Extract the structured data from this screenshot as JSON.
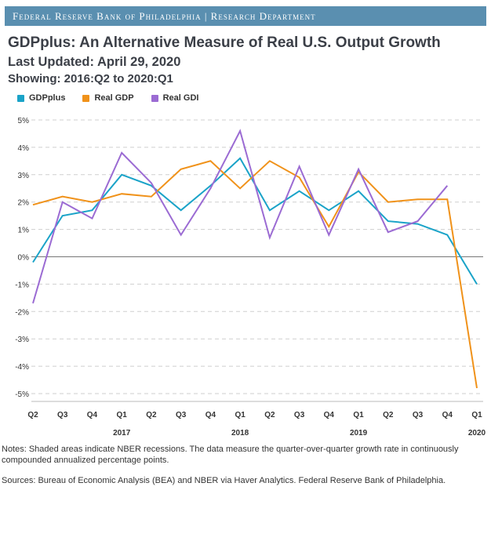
{
  "header": {
    "banner": "Federal Reserve Bank of Philadelphia | Research Department",
    "title": "GDPplus: An Alternative Measure of Real U.S. Output Growth",
    "updated": "Last Updated: April 29, 2020",
    "showing": "Showing: 2016:Q2 to 2020:Q1"
  },
  "footer": {
    "notes": "Notes: Shaded areas indicate NBER recessions. The data measure the quarter-over-quarter growth rate in continuously compounded annualized percentage points.",
    "sources": "Sources: Bureau of Economic Analysis (BEA) and NBER via Haver Analytics. Federal Reserve Bank of Philadelphia."
  },
  "chart_data": {
    "type": "line",
    "categories": [
      "Q2",
      "Q3",
      "Q4",
      "Q1",
      "Q2",
      "Q3",
      "Q4",
      "Q1",
      "Q2",
      "Q3",
      "Q4",
      "Q1",
      "Q2",
      "Q3",
      "Q4",
      "Q1"
    ],
    "year_labels": [
      {
        "label": "2017",
        "index": 3
      },
      {
        "label": "2018",
        "index": 7
      },
      {
        "label": "2019",
        "index": 11
      },
      {
        "label": "2020",
        "index": 15
      }
    ],
    "y_ticks": [
      5,
      4,
      3,
      2,
      1,
      0,
      -1,
      -2,
      -3,
      -4,
      -5
    ],
    "y_tick_suffix": "%",
    "ylim": [
      -5,
      5
    ],
    "grid": "horizontal dashed",
    "legend_position": "top-left",
    "series": [
      {
        "name": "GDPplus",
        "color": "#1aa3c8",
        "values": [
          -0.2,
          1.5,
          1.7,
          3.0,
          2.6,
          1.7,
          2.6,
          3.6,
          1.7,
          2.4,
          1.7,
          2.4,
          1.3,
          1.2,
          0.8,
          -1.0
        ]
      },
      {
        "name": "Real GDP",
        "color": "#f0921a",
        "values": [
          1.9,
          2.2,
          2.0,
          2.3,
          2.2,
          3.2,
          3.5,
          2.5,
          3.5,
          2.9,
          1.1,
          3.1,
          2.0,
          2.1,
          2.1,
          -4.8
        ]
      },
      {
        "name": "Real GDI",
        "color": "#9b6bd3",
        "values": [
          -1.7,
          2.0,
          1.4,
          3.8,
          2.7,
          0.8,
          2.5,
          4.6,
          0.7,
          3.3,
          0.8,
          3.2,
          0.9,
          1.3,
          2.6,
          null
        ]
      }
    ]
  }
}
